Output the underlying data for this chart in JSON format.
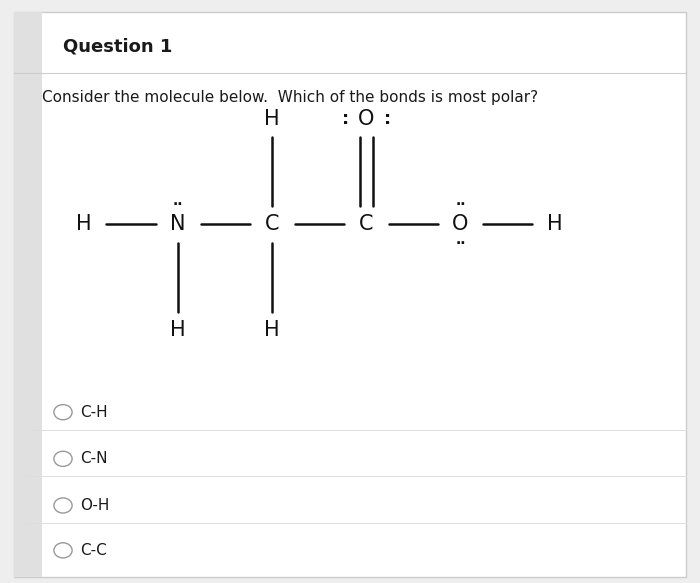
{
  "title": "Question 1",
  "question_text": "Consider the molecule below.  Which of the bonds is most polar?",
  "bg_color": "#eeeeee",
  "panel_color": "#ffffff",
  "text_color": "#1a1a1a",
  "options": [
    "C-H",
    "C-N",
    "O-H",
    "C-C"
  ]
}
